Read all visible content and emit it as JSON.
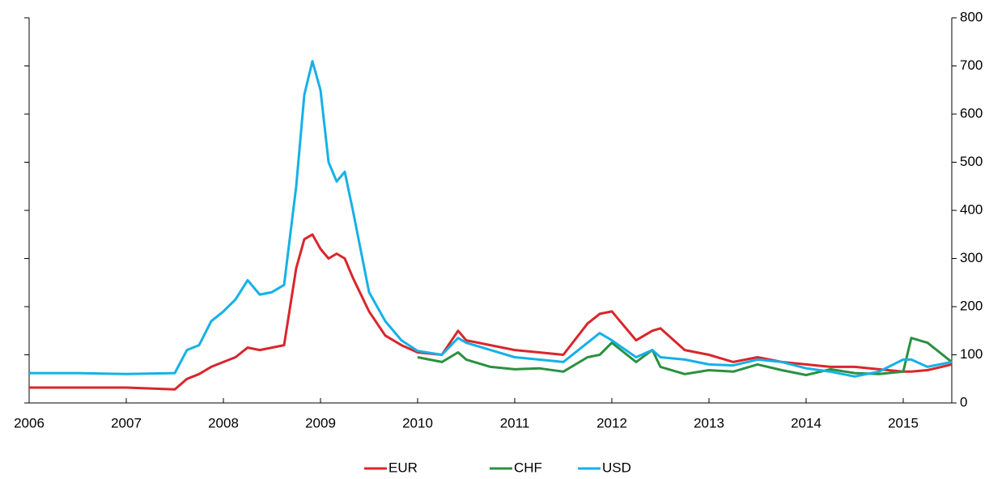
{
  "chart_data": {
    "type": "line",
    "x": [
      2006,
      2006.5,
      2007,
      2007.5,
      2007.625,
      2007.75,
      2007.875,
      2008,
      2008.125,
      2008.25,
      2008.375,
      2008.5,
      2008.625,
      2008.75,
      2008.833,
      2008.917,
      2009,
      2009.083,
      2009.167,
      2009.25,
      2009.333,
      2009.5,
      2009.667,
      2009.833,
      2010,
      2010.25,
      2010.417,
      2010.5,
      2010.75,
      2011,
      2011.25,
      2011.5,
      2011.75,
      2011.875,
      2012,
      2012.25,
      2012.417,
      2012.5,
      2012.75,
      2013,
      2013.25,
      2013.5,
      2013.75,
      2014,
      2014.25,
      2014.5,
      2014.75,
      2015,
      2015.083,
      2015.25,
      2015.5
    ],
    "series": [
      {
        "name": "EUR",
        "color": "#d9262b",
        "values": [
          32,
          32,
          32,
          28,
          50,
          60,
          75,
          85,
          95,
          115,
          110,
          115,
          120,
          280,
          340,
          350,
          320,
          300,
          310,
          300,
          260,
          190,
          140,
          120,
          105,
          100,
          150,
          130,
          120,
          110,
          105,
          100,
          165,
          185,
          190,
          130,
          150,
          155,
          110,
          100,
          85,
          95,
          85,
          80,
          75,
          75,
          70,
          65,
          65,
          68,
          80
        ]
      },
      {
        "name": "CHF",
        "color": "#2b9040",
        "values": [
          null,
          null,
          null,
          null,
          null,
          null,
          null,
          null,
          null,
          null,
          null,
          null,
          null,
          null,
          null,
          null,
          null,
          null,
          null,
          null,
          null,
          null,
          null,
          null,
          95,
          85,
          105,
          90,
          75,
          70,
          72,
          65,
          95,
          100,
          125,
          85,
          110,
          75,
          60,
          68,
          65,
          80,
          68,
          58,
          70,
          62,
          60,
          65,
          135,
          125,
          85
        ]
      },
      {
        "name": "USD",
        "color": "#14b1e7",
        "values": [
          62,
          62,
          60,
          62,
          110,
          120,
          170,
          190,
          215,
          255,
          225,
          230,
          245,
          450,
          640,
          710,
          650,
          500,
          460,
          480,
          400,
          230,
          170,
          130,
          108,
          100,
          135,
          125,
          110,
          95,
          90,
          85,
          125,
          145,
          130,
          95,
          110,
          95,
          90,
          80,
          78,
          90,
          85,
          72,
          65,
          55,
          65,
          90,
          90,
          75,
          85
        ]
      }
    ],
    "xlim": [
      2006,
      2015.5
    ],
    "xticks": [
      2006,
      2007,
      2008,
      2009,
      2010,
      2011,
      2012,
      2013,
      2014,
      2015
    ],
    "ylim": [
      0,
      800
    ],
    "yticks": [
      0,
      100,
      200,
      300,
      400,
      500,
      600,
      700,
      800
    ],
    "legend": "bottom"
  }
}
